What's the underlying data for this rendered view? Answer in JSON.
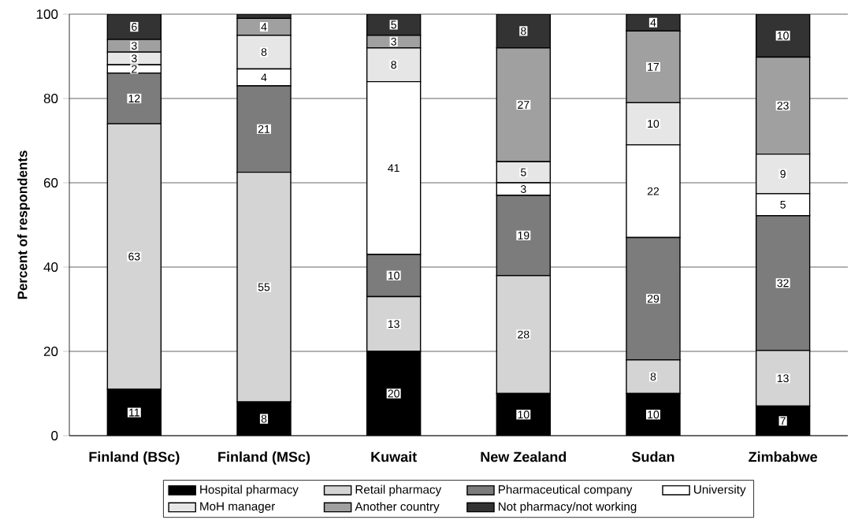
{
  "chart_data": {
    "type": "bar",
    "stacked": true,
    "ylabel": "Percent of respondents",
    "categories": [
      "Finland (BSc)",
      "Finland (MSc)",
      "Kuwait",
      "New Zealand",
      "Sudan",
      "Zimbabwe"
    ],
    "ylim": [
      0,
      100
    ],
    "yticks": [
      0,
      20,
      40,
      60,
      80,
      100
    ],
    "grid": "y",
    "legend": "bottom",
    "series": [
      {
        "name": "Hospital pharmacy",
        "color": "#000000",
        "values": [
          11,
          8,
          20,
          10,
          10,
          7
        ],
        "value_labels": [
          "11",
          "8",
          "20",
          "10",
          "10",
          "7"
        ]
      },
      {
        "name": "Retail pharmacy",
        "color": "#d4d4d4",
        "values": [
          63,
          54.5,
          13,
          28,
          8,
          13.2
        ],
        "value_labels": [
          "63",
          "55",
          "13",
          "28",
          "8",
          "13"
        ]
      },
      {
        "name": "Pharmaceutical company",
        "color": "#7c7c7c",
        "values": [
          12,
          20.5,
          10,
          19,
          29,
          32
        ],
        "value_labels": [
          "12",
          "21",
          "10",
          "19",
          "29",
          "32"
        ]
      },
      {
        "name": "University",
        "color": "#ffffff",
        "values": [
          2,
          4,
          41,
          3,
          22,
          5.2
        ],
        "value_labels": [
          "2",
          "4",
          "41",
          "3",
          "22",
          "5"
        ]
      },
      {
        "name": "MoH manager",
        "color": "#e6e6e6",
        "values": [
          3,
          8,
          8,
          5,
          10,
          9.4
        ],
        "value_labels": [
          "3",
          "8",
          "8",
          "5",
          "10",
          "9"
        ]
      },
      {
        "name": "Another country",
        "color": "#a0a0a0",
        "values": [
          3,
          4,
          3,
          27,
          17,
          23
        ],
        "value_labels": [
          "3",
          "4",
          "3",
          "27",
          "17",
          "23"
        ]
      },
      {
        "name": "Not pharmacy/not working",
        "color": "#333333",
        "values": [
          6,
          1,
          5,
          8,
          4,
          10.2
        ],
        "value_labels": [
          "6",
          null,
          "5",
          "8",
          "4",
          "10"
        ]
      }
    ]
  }
}
